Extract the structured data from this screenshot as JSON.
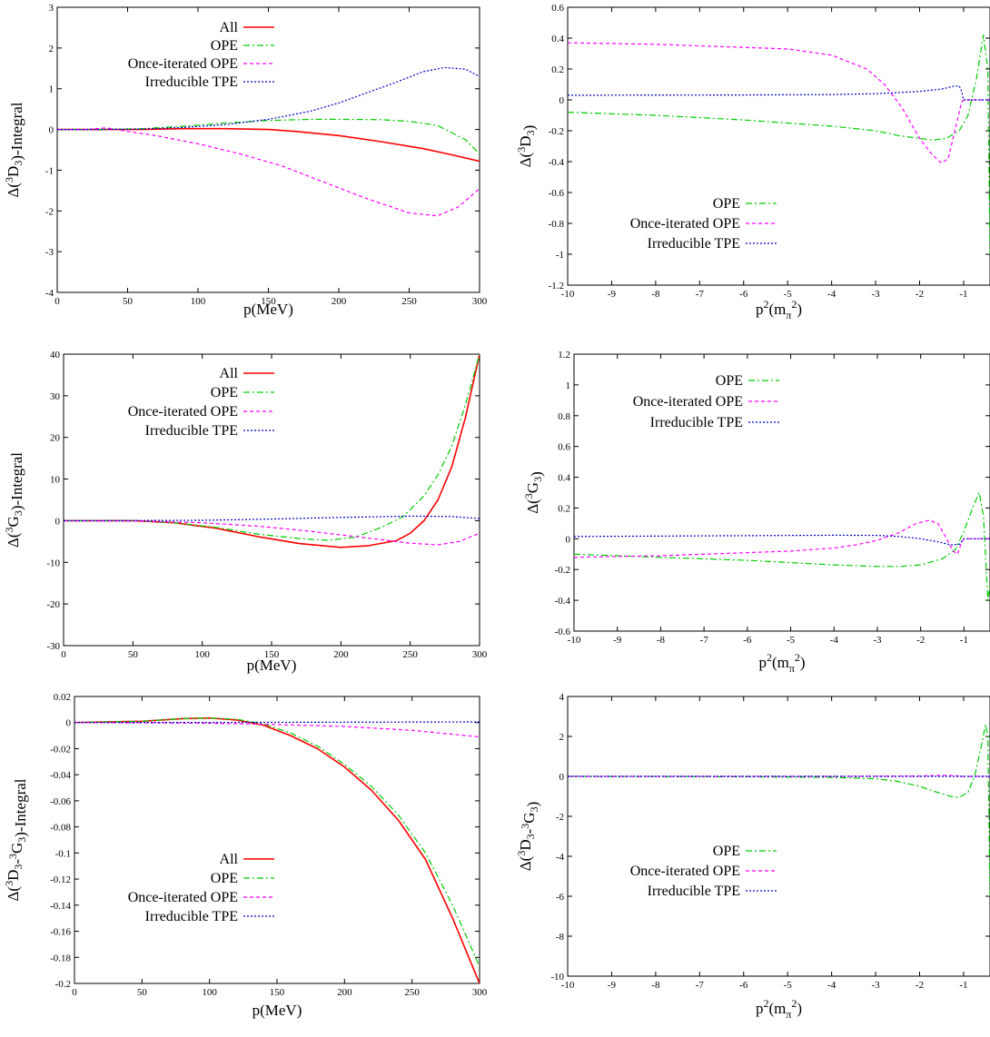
{
  "chart_data": [
    {
      "type": "line",
      "panel": "a",
      "xlabel": "p(MeV)",
      "ylabel": "Δ(3D3)-Integral",
      "xlim": [
        0,
        300
      ],
      "ylim": [
        -4,
        3
      ],
      "xticks": [
        0,
        50,
        100,
        150,
        200,
        250,
        300
      ],
      "yticks": [
        -4,
        -3,
        -2,
        -1,
        0,
        1,
        2,
        3
      ],
      "legend": "top-left",
      "series": [
        {
          "name": "All",
          "color": "#ff0000",
          "x": [
            0,
            30,
            60,
            90,
            120,
            150,
            170,
            200,
            230,
            260,
            280,
            300
          ],
          "y": [
            0,
            0,
            0,
            0.02,
            0.02,
            0,
            -0.05,
            -0.15,
            -0.3,
            -0.47,
            -0.62,
            -0.78
          ]
        },
        {
          "name": "OPE",
          "color": "#00cc00",
          "x": [
            0,
            30,
            60,
            90,
            120,
            150,
            180,
            200,
            230,
            250,
            270,
            290,
            300
          ],
          "y": [
            0,
            0,
            0.02,
            0.08,
            0.16,
            0.22,
            0.25,
            0.25,
            0.24,
            0.2,
            0.1,
            -0.25,
            -0.6
          ]
        },
        {
          "name": "Once-iterated OPE",
          "color": "#ff00ff",
          "x": [
            0,
            20,
            35,
            50,
            70,
            100,
            130,
            160,
            190,
            220,
            250,
            270,
            285,
            300
          ],
          "y": [
            0,
            0,
            0.04,
            -0.05,
            -0.15,
            -0.35,
            -0.6,
            -0.9,
            -1.3,
            -1.7,
            -2.05,
            -2.12,
            -1.9,
            -1.45
          ]
        },
        {
          "name": "Irreducible TPE",
          "color": "#0000cc",
          "x": [
            0,
            30,
            60,
            90,
            120,
            150,
            180,
            200,
            220,
            240,
            260,
            275,
            290,
            300
          ],
          "y": [
            0,
            0,
            0.01,
            0.05,
            0.12,
            0.25,
            0.45,
            0.65,
            0.9,
            1.15,
            1.42,
            1.52,
            1.48,
            1.3
          ]
        }
      ]
    },
    {
      "type": "line",
      "panel": "b",
      "xlabel": "p2(mπ2)",
      "ylabel": "Δ(3D3)",
      "xlim": [
        -10,
        -0.4
      ],
      "ylim": [
        -1.2,
        0.6
      ],
      "xticks": [
        -10,
        -9,
        -8,
        -7,
        -6,
        -5,
        -4,
        -3,
        -2,
        -1
      ],
      "yticks": [
        -1.2,
        -1,
        -0.8,
        -0.6,
        -0.4,
        -0.2,
        0,
        0.2,
        0.4,
        0.6
      ],
      "legend": "bottom-center",
      "series": [
        {
          "name": "OPE",
          "color": "#00cc00",
          "x": [
            -10,
            -8,
            -6,
            -5,
            -4,
            -3,
            -2.5,
            -2,
            -1.7,
            -1.4,
            -1.1,
            -0.9,
            -0.7,
            -0.55,
            -0.45,
            -0.4
          ],
          "y": [
            -0.08,
            -0.1,
            -0.13,
            -0.15,
            -0.17,
            -0.2,
            -0.23,
            -0.25,
            -0.26,
            -0.25,
            -0.2,
            -0.1,
            0.15,
            0.42,
            0.2,
            -1
          ]
        },
        {
          "name": "Once-iterated OPE",
          "color": "#ff00ff",
          "x": [
            -10,
            -8,
            -6,
            -5,
            -4,
            -3.2,
            -2.8,
            -2.4,
            -2,
            -1.7,
            -1.5,
            -1.35,
            -1.2,
            -1.05,
            -1,
            -0.4
          ],
          "y": [
            0.37,
            0.36,
            0.34,
            0.33,
            0.29,
            0.2,
            0.1,
            -0.05,
            -0.25,
            -0.36,
            -0.41,
            -0.38,
            -0.2,
            -0.02,
            0,
            0
          ]
        },
        {
          "name": "Irreducible TPE",
          "color": "#0000cc",
          "x": [
            -10,
            -6,
            -4,
            -3,
            -2,
            -1.5,
            -1.2,
            -1.1,
            -1.05,
            -1,
            -0.4
          ],
          "y": [
            0.03,
            0.032,
            0.035,
            0.04,
            0.055,
            0.07,
            0.09,
            0.09,
            0.06,
            0,
            0
          ]
        }
      ]
    },
    {
      "type": "line",
      "panel": "c",
      "xlabel": "p(MeV)",
      "ylabel": "Δ(3G3)-Integral",
      "xlim": [
        0,
        300
      ],
      "ylim": [
        -30,
        40
      ],
      "xticks": [
        0,
        50,
        100,
        150,
        200,
        250,
        300
      ],
      "yticks": [
        -30,
        -20,
        -10,
        0,
        10,
        20,
        30,
        40
      ],
      "legend": "top-left",
      "series": [
        {
          "name": "All",
          "color": "#ff0000",
          "x": [
            0,
            50,
            80,
            110,
            140,
            170,
            200,
            220,
            240,
            250,
            260,
            270,
            280,
            290,
            300
          ],
          "y": [
            0,
            0,
            -0.5,
            -1.8,
            -3.8,
            -5.5,
            -6.4,
            -6,
            -4.8,
            -3,
            0,
            5,
            13,
            25,
            40
          ]
        },
        {
          "name": "OPE",
          "color": "#00cc00",
          "x": [
            0,
            50,
            80,
            110,
            140,
            170,
            190,
            210,
            230,
            245,
            260,
            270,
            280,
            290,
            300
          ],
          "y": [
            0,
            0,
            -0.5,
            -1.6,
            -3.2,
            -4.3,
            -4.7,
            -4,
            -1.5,
            1,
            6,
            11,
            18,
            28,
            40
          ]
        },
        {
          "name": "Once-iterated OPE",
          "color": "#ff00ff",
          "x": [
            0,
            60,
            100,
            140,
            180,
            220,
            250,
            270,
            285,
            300
          ],
          "y": [
            0,
            -0.1,
            -0.5,
            -1.3,
            -2.6,
            -4.2,
            -5.4,
            -5.8,
            -5,
            -3
          ]
        },
        {
          "name": "Irreducible TPE",
          "color": "#0000cc",
          "x": [
            0,
            100,
            150,
            200,
            250,
            280,
            300
          ],
          "y": [
            0,
            0.1,
            0.4,
            0.8,
            1.1,
            1,
            0.5
          ]
        }
      ]
    },
    {
      "type": "line",
      "panel": "d",
      "xlabel": "p2(mπ2)",
      "ylabel": "Δ(3G3)",
      "xlim": [
        -10,
        -0.4
      ],
      "ylim": [
        -0.6,
        1.2
      ],
      "xticks": [
        -10,
        -9,
        -8,
        -7,
        -6,
        -5,
        -4,
        -3,
        -2,
        -1
      ],
      "yticks": [
        -0.6,
        -0.4,
        -0.2,
        0,
        0.2,
        0.4,
        0.6,
        0.8,
        1,
        1.2
      ],
      "legend": "top-center",
      "series": [
        {
          "name": "OPE",
          "color": "#00cc00",
          "x": [
            -10,
            -8,
            -6,
            -4,
            -3,
            -2.5,
            -2,
            -1.5,
            -1.2,
            -1,
            -0.8,
            -0.65,
            -0.55,
            -0.45,
            -0.4
          ],
          "y": [
            -0.1,
            -0.12,
            -0.14,
            -0.17,
            -0.18,
            -0.18,
            -0.17,
            -0.13,
            -0.07,
            0.05,
            0.2,
            0.3,
            0.15,
            -0.4,
            -0.3
          ]
        },
        {
          "name": "Once-iterated OPE",
          "color": "#ff00ff",
          "x": [
            -10,
            -8,
            -6,
            -5,
            -4,
            -3.5,
            -3,
            -2.5,
            -2.1,
            -1.8,
            -1.6,
            -1.4,
            -1.25,
            -1.15,
            -1.05,
            -1,
            -0.4
          ],
          "y": [
            -0.12,
            -0.11,
            -0.09,
            -0.08,
            -0.06,
            -0.04,
            -0.01,
            0.04,
            0.1,
            0.12,
            0.1,
            0,
            -0.08,
            -0.1,
            -0.02,
            0,
            0
          ]
        },
        {
          "name": "Irreducible TPE",
          "color": "#0000cc",
          "x": [
            -10,
            -6,
            -4,
            -3,
            -2.5,
            -2,
            -1.6,
            -1.3,
            -1.1,
            -1,
            -0.4
          ],
          "y": [
            0.015,
            0.02,
            0.023,
            0.022,
            0.015,
            0,
            -0.02,
            -0.04,
            -0.035,
            0,
            0
          ]
        }
      ]
    },
    {
      "type": "line",
      "panel": "e",
      "xlabel": "p(MeV)",
      "ylabel": "Δ(3D3-3G3)-Integral",
      "xlim": [
        0,
        300
      ],
      "ylim": [
        -0.2,
        0.02
      ],
      "xticks": [
        0,
        50,
        100,
        150,
        200,
        250,
        300
      ],
      "yticks": [
        -0.2,
        -0.18,
        -0.16,
        -0.14,
        -0.12,
        -0.1,
        -0.08,
        -0.06,
        -0.04,
        -0.02,
        0,
        0.02
      ],
      "legend": "bottom-left",
      "series": [
        {
          "name": "All",
          "color": "#ff0000",
          "x": [
            0,
            50,
            80,
            100,
            120,
            140,
            160,
            180,
            200,
            220,
            240,
            260,
            280,
            300
          ],
          "y": [
            0,
            0.001,
            0.003,
            0.0035,
            0.002,
            -0.002,
            -0.01,
            -0.02,
            -0.034,
            -0.052,
            -0.075,
            -0.105,
            -0.15,
            -0.2
          ]
        },
        {
          "name": "OPE",
          "color": "#00cc00",
          "x": [
            0,
            50,
            80,
            100,
            120,
            140,
            160,
            180,
            200,
            220,
            240,
            260,
            280,
            300
          ],
          "y": [
            0,
            0.001,
            0.003,
            0.0035,
            0.0025,
            -0.001,
            -0.008,
            -0.018,
            -0.032,
            -0.049,
            -0.071,
            -0.1,
            -0.14,
            -0.187
          ]
        },
        {
          "name": "Once-iterated OPE",
          "color": "#ff00ff",
          "x": [
            0,
            100,
            150,
            200,
            250,
            300
          ],
          "y": [
            0,
            -0.0005,
            -0.0015,
            -0.003,
            -0.006,
            -0.011
          ]
        },
        {
          "name": "Irreducible TPE",
          "color": "#0000cc",
          "x": [
            0,
            100,
            200,
            300
          ],
          "y": [
            0,
            0.0001,
            0.0003,
            0.0005
          ]
        }
      ]
    },
    {
      "type": "line",
      "panel": "f",
      "xlabel": "p2(mπ2)",
      "ylabel": "Δ(3D3-3G3)",
      "xlim": [
        -10,
        -0.4
      ],
      "ylim": [
        -10,
        4
      ],
      "xticks": [
        -10,
        -9,
        -8,
        -7,
        -6,
        -5,
        -4,
        -3,
        -2,
        -1
      ],
      "yticks": [
        -10,
        -8,
        -6,
        -4,
        -2,
        0,
        2,
        4
      ],
      "legend": "center",
      "series": [
        {
          "name": "OPE",
          "color": "#00cc00",
          "x": [
            -10,
            -6,
            -4,
            -3,
            -2.5,
            -2,
            -1.6,
            -1.3,
            -1.1,
            -0.9,
            -0.75,
            -0.6,
            -0.5,
            -0.45,
            -0.4
          ],
          "y": [
            0,
            -0.02,
            -0.05,
            -0.12,
            -0.25,
            -0.5,
            -0.8,
            -1,
            -1.05,
            -0.8,
            0,
            1.5,
            2.6,
            2,
            -6
          ]
        },
        {
          "name": "Once-iterated OPE",
          "color": "#ff00ff",
          "x": [
            -10,
            -4,
            -2,
            -1.5,
            -1.2,
            -1.05,
            -1,
            -0.4
          ],
          "y": [
            0,
            0,
            0.02,
            0.05,
            0.04,
            0,
            0,
            0
          ]
        },
        {
          "name": "Irreducible TPE",
          "color": "#0000cc",
          "x": [
            -10,
            -5,
            -2,
            -1,
            -0.4
          ],
          "y": [
            0,
            0,
            0,
            0,
            0
          ]
        }
      ]
    }
  ]
}
